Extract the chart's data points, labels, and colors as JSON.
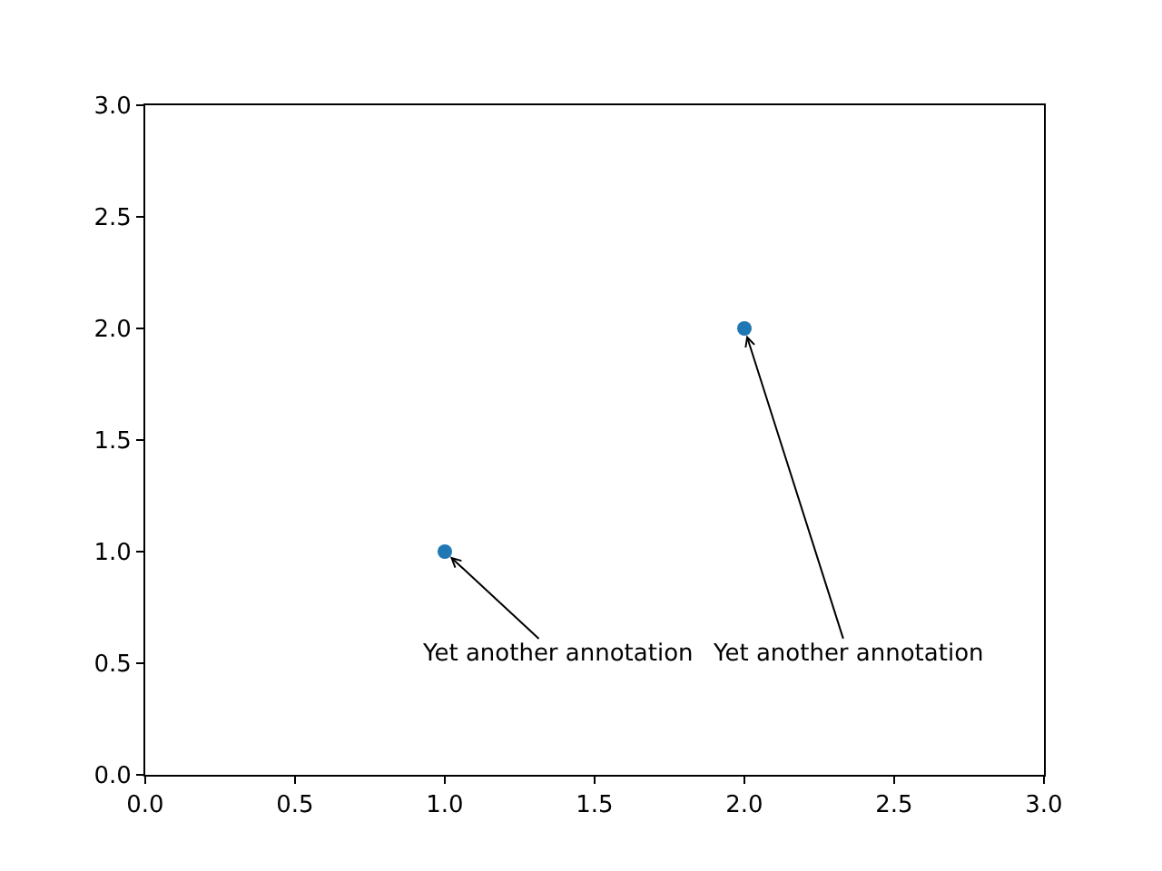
{
  "chart_data": {
    "type": "scatter",
    "x": [
      1,
      2
    ],
    "values": [
      1,
      2
    ],
    "color": "#1f77b4",
    "marker": "circle",
    "xlim": [
      0,
      3
    ],
    "ylim": [
      0,
      3
    ],
    "xticks": [
      {
        "value": 0,
        "label": "0.0"
      },
      0.5,
      {
        "value": 1,
        "label": "1.0"
      },
      1.5,
      {
        "value": 2,
        "label": "2.0"
      },
      2.5,
      {
        "value": 3,
        "label": "3.0"
      }
    ],
    "yticks": [
      {
        "value": 0,
        "label": "0.0"
      },
      0.5,
      {
        "value": 1,
        "label": "1.0"
      },
      1.5,
      {
        "value": 2,
        "label": "2.0"
      },
      2.5,
      {
        "value": 3,
        "label": "3.0"
      }
    ],
    "annotations": [
      {
        "text": "Yet another annotation",
        "x": 1,
        "y": 1
      },
      {
        "text": "Yet another annotation",
        "x": 2,
        "y": 2
      }
    ]
  }
}
